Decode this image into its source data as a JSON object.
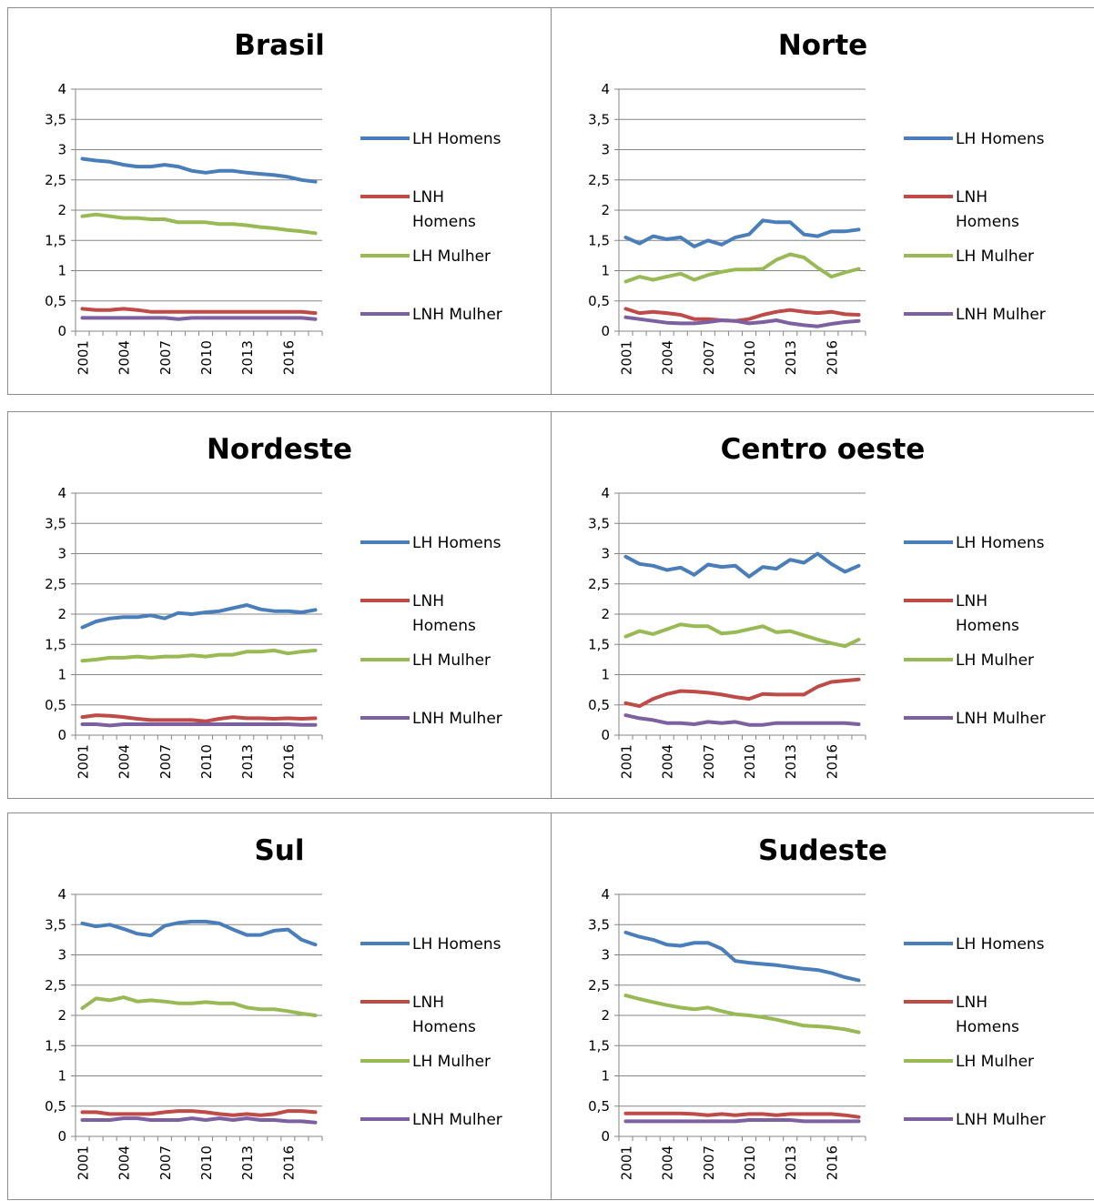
{
  "chart_data": [
    {
      "type": "line",
      "title": "Brasil",
      "x": [
        2001,
        2002,
        2003,
        2004,
        2005,
        2006,
        2007,
        2008,
        2009,
        2010,
        2011,
        2012,
        2013,
        2014,
        2015,
        2016,
        2017,
        2018
      ],
      "x_tick_labels": [
        "2001",
        "2004",
        "2007",
        "2010",
        "2013",
        "2016"
      ],
      "y_tick_labels": [
        "0",
        "0,5",
        "1",
        "1,5",
        "2",
        "2,5",
        "3",
        "3,5",
        "4"
      ],
      "ylim": [
        0,
        4
      ],
      "grid": true,
      "legend_position": "right",
      "series": [
        {
          "name": "LH Homens",
          "color": "#4a7ebb",
          "values": [
            2.85,
            2.82,
            2.8,
            2.75,
            2.72,
            2.72,
            2.75,
            2.72,
            2.65,
            2.62,
            2.65,
            2.65,
            2.62,
            2.6,
            2.58,
            2.55,
            2.5,
            2.47
          ]
        },
        {
          "name": "LNH Homens",
          "color": "#be4b48",
          "values": [
            0.37,
            0.35,
            0.35,
            0.37,
            0.35,
            0.32,
            0.32,
            0.32,
            0.32,
            0.32,
            0.32,
            0.32,
            0.32,
            0.32,
            0.32,
            0.32,
            0.32,
            0.3
          ]
        },
        {
          "name": "LH Mulher",
          "color": "#98b954",
          "values": [
            1.9,
            1.93,
            1.9,
            1.87,
            1.87,
            1.85,
            1.85,
            1.8,
            1.8,
            1.8,
            1.77,
            1.77,
            1.75,
            1.72,
            1.7,
            1.67,
            1.65,
            1.62
          ]
        },
        {
          "name": "LNH Mulher",
          "color": "#7d60a0",
          "values": [
            0.22,
            0.22,
            0.22,
            0.22,
            0.22,
            0.22,
            0.22,
            0.2,
            0.22,
            0.22,
            0.22,
            0.22,
            0.22,
            0.22,
            0.22,
            0.22,
            0.22,
            0.2
          ]
        }
      ]
    },
    {
      "type": "line",
      "title": "Norte",
      "x": [
        2001,
        2002,
        2003,
        2004,
        2005,
        2006,
        2007,
        2008,
        2009,
        2010,
        2011,
        2012,
        2013,
        2014,
        2015,
        2016,
        2017,
        2018
      ],
      "x_tick_labels": [
        "2001",
        "2004",
        "2007",
        "2010",
        "2013",
        "2016"
      ],
      "y_tick_labels": [
        "0",
        "0,5",
        "1",
        "1,5",
        "2",
        "2,5",
        "3",
        "3,5",
        "4"
      ],
      "ylim": [
        0,
        4
      ],
      "grid": true,
      "legend_position": "right",
      "series": [
        {
          "name": "LH Homens",
          "color": "#4a7ebb",
          "values": [
            1.55,
            1.45,
            1.57,
            1.52,
            1.55,
            1.4,
            1.5,
            1.43,
            1.55,
            1.6,
            1.83,
            1.8,
            1.8,
            1.6,
            1.57,
            1.65,
            1.65,
            1.68
          ]
        },
        {
          "name": "LNH Homens",
          "color": "#be4b48",
          "values": [
            0.37,
            0.3,
            0.32,
            0.3,
            0.27,
            0.2,
            0.2,
            0.18,
            0.17,
            0.2,
            0.27,
            0.32,
            0.35,
            0.32,
            0.3,
            0.32,
            0.28,
            0.27
          ]
        },
        {
          "name": "LH Mulher",
          "color": "#98b954",
          "values": [
            0.82,
            0.9,
            0.85,
            0.9,
            0.95,
            0.85,
            0.93,
            0.98,
            1.02,
            1.02,
            1.03,
            1.18,
            1.27,
            1.22,
            1.05,
            0.9,
            0.97,
            1.03
          ]
        },
        {
          "name": "LNH Mulher",
          "color": "#7d60a0",
          "values": [
            0.23,
            0.2,
            0.17,
            0.14,
            0.13,
            0.13,
            0.15,
            0.18,
            0.17,
            0.13,
            0.15,
            0.18,
            0.13,
            0.1,
            0.08,
            0.12,
            0.15,
            0.17
          ]
        }
      ]
    },
    {
      "type": "line",
      "title": "Nordeste",
      "x": [
        2001,
        2002,
        2003,
        2004,
        2005,
        2006,
        2007,
        2008,
        2009,
        2010,
        2011,
        2012,
        2013,
        2014,
        2015,
        2016,
        2017,
        2018
      ],
      "x_tick_labels": [
        "2001",
        "2004",
        "2007",
        "2010",
        "2013",
        "2016"
      ],
      "y_tick_labels": [
        "0",
        "0,5",
        "1",
        "1,5",
        "2",
        "2,5",
        "3",
        "3,5",
        "4"
      ],
      "ylim": [
        0,
        4
      ],
      "grid": true,
      "legend_position": "right",
      "series": [
        {
          "name": "LH Homens",
          "color": "#4a7ebb",
          "values": [
            1.78,
            1.88,
            1.93,
            1.95,
            1.95,
            1.98,
            1.93,
            2.02,
            2.0,
            2.03,
            2.05,
            2.1,
            2.15,
            2.08,
            2.05,
            2.05,
            2.03,
            2.07
          ]
        },
        {
          "name": "LNH Homens",
          "color": "#be4b48",
          "values": [
            0.3,
            0.33,
            0.32,
            0.3,
            0.27,
            0.25,
            0.25,
            0.25,
            0.25,
            0.23,
            0.27,
            0.3,
            0.28,
            0.28,
            0.27,
            0.28,
            0.27,
            0.28
          ]
        },
        {
          "name": "LH Mulher",
          "color": "#98b954",
          "values": [
            1.23,
            1.25,
            1.28,
            1.28,
            1.3,
            1.28,
            1.3,
            1.3,
            1.32,
            1.3,
            1.33,
            1.33,
            1.38,
            1.38,
            1.4,
            1.35,
            1.38,
            1.4
          ]
        },
        {
          "name": "LNH Mulher",
          "color": "#7d60a0",
          "values": [
            0.18,
            0.18,
            0.16,
            0.18,
            0.18,
            0.18,
            0.18,
            0.18,
            0.18,
            0.18,
            0.18,
            0.18,
            0.18,
            0.18,
            0.18,
            0.18,
            0.17,
            0.17
          ]
        }
      ]
    },
    {
      "type": "line",
      "title": "Centro oeste",
      "x": [
        2001,
        2002,
        2003,
        2004,
        2005,
        2006,
        2007,
        2008,
        2009,
        2010,
        2011,
        2012,
        2013,
        2014,
        2015,
        2016,
        2017,
        2018
      ],
      "x_tick_labels": [
        "2001",
        "2004",
        "2007",
        "2010",
        "2013",
        "2016"
      ],
      "y_tick_labels": [
        "0",
        "0,5",
        "1",
        "1,5",
        "2",
        "2,5",
        "3",
        "3,5",
        "4"
      ],
      "ylim": [
        0,
        4
      ],
      "grid": true,
      "legend_position": "right",
      "series": [
        {
          "name": "LH Homens",
          "color": "#4a7ebb",
          "values": [
            2.95,
            2.83,
            2.8,
            2.73,
            2.77,
            2.65,
            2.82,
            2.78,
            2.8,
            2.62,
            2.78,
            2.75,
            2.9,
            2.85,
            3.0,
            2.83,
            2.7,
            2.8
          ]
        },
        {
          "name": "LNH Homens",
          "color": "#be4b48",
          "values": [
            0.53,
            0.48,
            0.6,
            0.68,
            0.73,
            0.72,
            0.7,
            0.67,
            0.63,
            0.6,
            0.68,
            0.67,
            0.67,
            0.67,
            0.8,
            0.88,
            0.9,
            0.92
          ]
        },
        {
          "name": "LH Mulher",
          "color": "#98b954",
          "values": [
            1.63,
            1.72,
            1.67,
            1.75,
            1.83,
            1.8,
            1.8,
            1.68,
            1.7,
            1.75,
            1.8,
            1.7,
            1.72,
            1.65,
            1.58,
            1.52,
            1.47,
            1.58
          ]
        },
        {
          "name": "LNH Mulher",
          "color": "#7d60a0",
          "values": [
            0.33,
            0.28,
            0.25,
            0.2,
            0.2,
            0.18,
            0.22,
            0.2,
            0.22,
            0.17,
            0.17,
            0.2,
            0.2,
            0.2,
            0.2,
            0.2,
            0.2,
            0.18
          ]
        }
      ]
    },
    {
      "type": "line",
      "title": "Sul",
      "x": [
        2001,
        2002,
        2003,
        2004,
        2005,
        2006,
        2007,
        2008,
        2009,
        2010,
        2011,
        2012,
        2013,
        2014,
        2015,
        2016,
        2017,
        2018
      ],
      "x_tick_labels": [
        "2001",
        "2004",
        "2007",
        "2010",
        "2013",
        "2016"
      ],
      "y_tick_labels": [
        "0",
        "0,5",
        "1",
        "1,5",
        "2",
        "2,5",
        "3",
        "3,5",
        "4"
      ],
      "ylim": [
        0,
        4
      ],
      "grid": true,
      "legend_position": "right",
      "series": [
        {
          "name": "LH Homens",
          "color": "#4a7ebb",
          "values": [
            3.52,
            3.47,
            3.5,
            3.43,
            3.35,
            3.32,
            3.48,
            3.53,
            3.55,
            3.55,
            3.52,
            3.42,
            3.33,
            3.33,
            3.4,
            3.42,
            3.25,
            3.17
          ]
        },
        {
          "name": "LNH Homens",
          "color": "#be4b48",
          "values": [
            0.4,
            0.4,
            0.37,
            0.37,
            0.37,
            0.37,
            0.4,
            0.42,
            0.42,
            0.4,
            0.37,
            0.35,
            0.37,
            0.35,
            0.37,
            0.42,
            0.42,
            0.4
          ]
        },
        {
          "name": "LH Mulher",
          "color": "#98b954",
          "values": [
            2.12,
            2.28,
            2.25,
            2.3,
            2.23,
            2.25,
            2.23,
            2.2,
            2.2,
            2.22,
            2.2,
            2.2,
            2.13,
            2.1,
            2.1,
            2.07,
            2.03,
            2.0
          ]
        },
        {
          "name": "LNH Mulher",
          "color": "#7d60a0",
          "values": [
            0.27,
            0.27,
            0.27,
            0.3,
            0.3,
            0.27,
            0.27,
            0.27,
            0.3,
            0.27,
            0.3,
            0.27,
            0.3,
            0.27,
            0.27,
            0.25,
            0.25,
            0.23
          ]
        }
      ]
    },
    {
      "type": "line",
      "title": "Sudeste",
      "x": [
        2001,
        2002,
        2003,
        2004,
        2005,
        2006,
        2007,
        2008,
        2009,
        2010,
        2011,
        2012,
        2013,
        2014,
        2015,
        2016,
        2017,
        2018
      ],
      "x_tick_labels": [
        "2001",
        "2004",
        "2007",
        "2010",
        "2013",
        "2016"
      ],
      "y_tick_labels": [
        "0",
        "0,5",
        "1",
        "1,5",
        "2",
        "2,5",
        "3",
        "3,5",
        "4"
      ],
      "ylim": [
        0,
        4
      ],
      "grid": true,
      "legend_position": "right",
      "series": [
        {
          "name": "LH Homens",
          "color": "#4a7ebb",
          "values": [
            3.37,
            3.3,
            3.25,
            3.17,
            3.15,
            3.2,
            3.2,
            3.1,
            2.9,
            2.87,
            2.85,
            2.83,
            2.8,
            2.77,
            2.75,
            2.7,
            2.63,
            2.58
          ]
        },
        {
          "name": "LNH Homens",
          "color": "#be4b48",
          "values": [
            0.38,
            0.38,
            0.38,
            0.38,
            0.38,
            0.37,
            0.35,
            0.37,
            0.35,
            0.37,
            0.37,
            0.35,
            0.37,
            0.37,
            0.37,
            0.37,
            0.35,
            0.32
          ]
        },
        {
          "name": "LH Mulher",
          "color": "#98b954",
          "values": [
            2.33,
            2.27,
            2.22,
            2.17,
            2.13,
            2.1,
            2.13,
            2.07,
            2.02,
            2.0,
            1.97,
            1.93,
            1.88,
            1.83,
            1.82,
            1.8,
            1.77,
            1.72
          ]
        },
        {
          "name": "LNH Mulher",
          "color": "#7d60a0",
          "values": [
            0.25,
            0.25,
            0.25,
            0.25,
            0.25,
            0.25,
            0.25,
            0.25,
            0.25,
            0.27,
            0.27,
            0.27,
            0.27,
            0.25,
            0.25,
            0.25,
            0.25,
            0.25
          ]
        }
      ]
    }
  ],
  "legend_labels": {
    "lh_homens": "LH Homens",
    "lnh_homens_line1": "LNH",
    "lnh_homens_line2": "Homens",
    "lh_mulher": "LH Mulher",
    "lnh_mulher": "LNH Mulher"
  }
}
